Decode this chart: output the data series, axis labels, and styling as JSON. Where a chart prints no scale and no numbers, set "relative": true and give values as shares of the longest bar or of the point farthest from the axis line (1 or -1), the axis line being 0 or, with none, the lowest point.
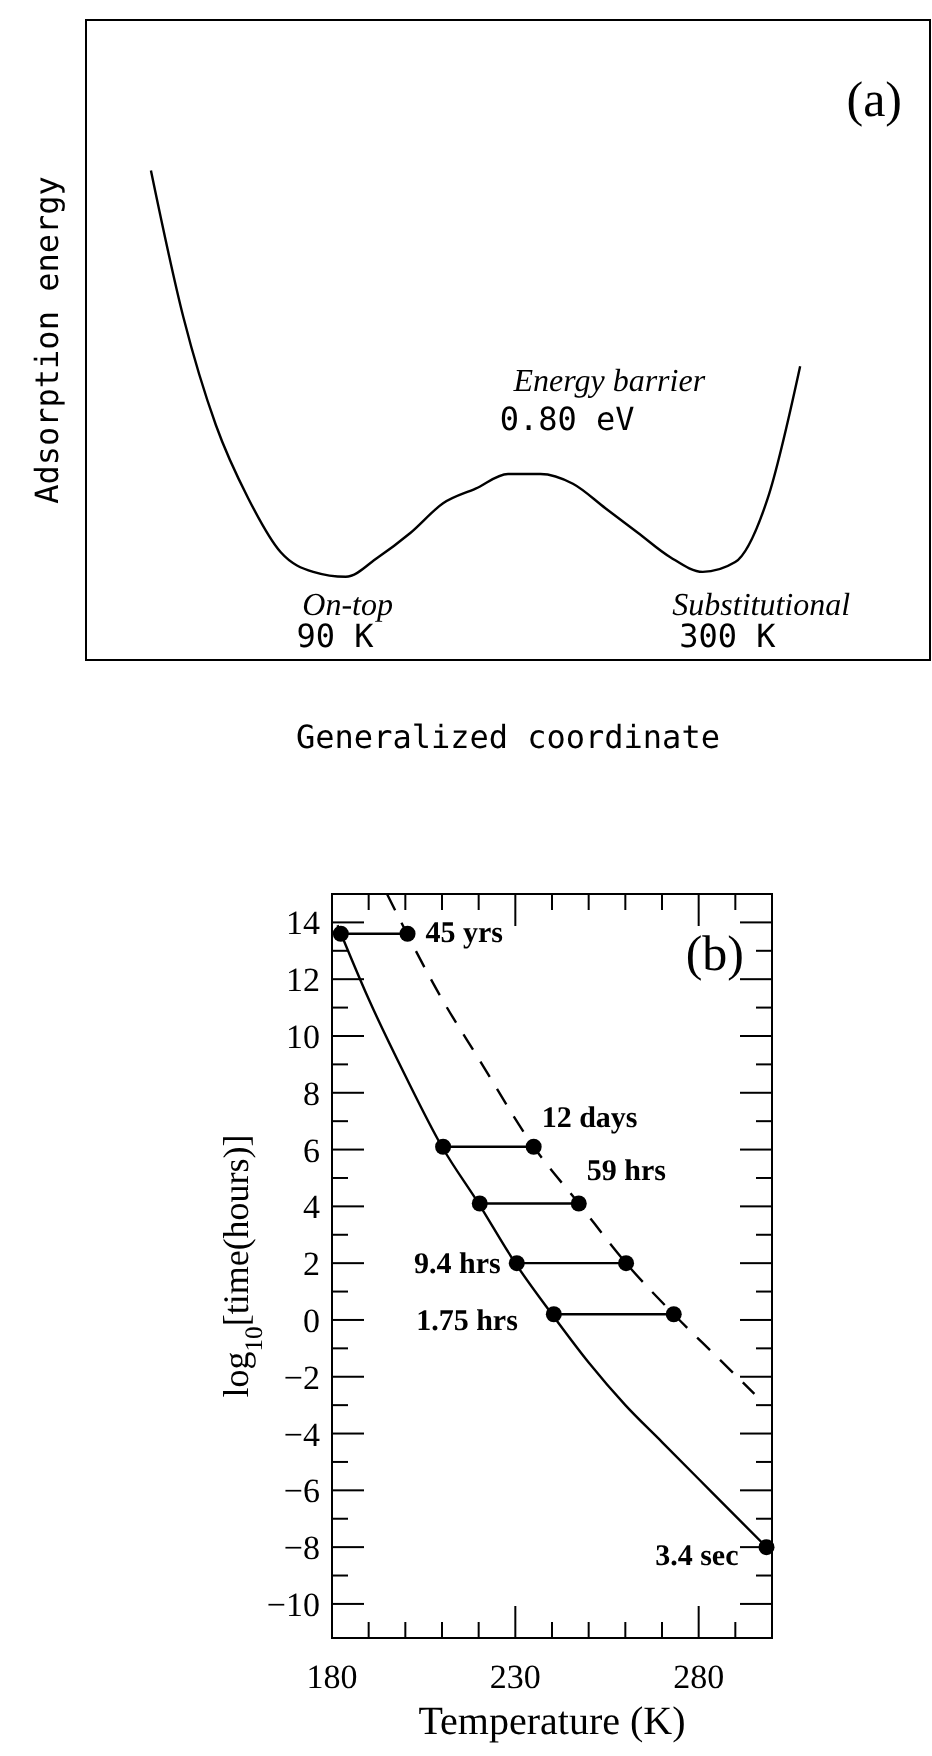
{
  "chart_data": [
    {
      "type": "line",
      "title": "(a)",
      "xlabel": "Generalized coordinate",
      "ylabel": "Adsorption energy",
      "relative": true,
      "categories": [
        null,
        null,
        null,
        null,
        null,
        null,
        null,
        null,
        null,
        null,
        null,
        null,
        null,
        null,
        null,
        null,
        null,
        null,
        null,
        null,
        null,
        null,
        null,
        null,
        null,
        null,
        null
      ],
      "values": [
        null,
        null,
        1,
        0.7,
        0.48,
        0.33,
        0.22,
        0.18,
        0.17,
        0.21,
        0.26,
        0.32,
        0.35,
        0.38,
        0.38,
        0.36,
        0.31,
        0.26,
        0.21,
        0.18,
        0.2,
        0.33,
        0.6,
        null,
        null,
        null,
        null
      ],
      "color": "#000000",
      "annotations": [
        "Energy barrier",
        "0.80 eV",
        "On-top",
        "90 K",
        "Substitutional",
        "300 K"
      ]
    },
    {
      "type": "line",
      "title": "(b)",
      "xlabel": "Temperature (K)",
      "ylabel": "log$_{10}$[time(hours)]",
      "xlim": [
        180,
        300
      ],
      "ylim": [
        -11.2,
        15
      ],
      "xticks": [
        180,
        {
          "value": 190,
          "label": null
        },
        {
          "value": 200,
          "label": null
        },
        {
          "value": 210,
          "label": null
        },
        {
          "value": 220,
          "label": null
        },
        230,
        {
          "value": 240,
          "label": null
        },
        {
          "value": 250,
          "label": null
        },
        {
          "value": 260,
          "label": null
        },
        {
          "value": 270,
          "label": null
        },
        280,
        {
          "value": 290,
          "label": null
        },
        {
          "value": 300,
          "label": null
        }
      ],
      "yticks": [
        -10,
        {
          "value": -9,
          "label": null
        },
        -8,
        {
          "value": -7,
          "label": null
        },
        -6,
        {
          "value": -5,
          "label": null
        },
        -4,
        {
          "value": -3,
          "label": null
        },
        -2,
        {
          "value": -1,
          "label": null
        },
        0,
        {
          "value": 1,
          "label": null
        },
        2,
        {
          "value": 3,
          "label": null
        },
        4,
        {
          "value": 5,
          "label": null
        },
        6,
        {
          "value": 7,
          "label": null
        },
        8,
        {
          "value": 9,
          "label": null
        },
        10,
        {
          "value": 11,
          "label": null
        },
        12,
        {
          "value": 13,
          "label": null
        },
        14
      ],
      "series": [
        {
          "color": "#000000",
          "line_style": "solid",
          "x": [
            181.5,
            190,
            200,
            210,
            220,
            230,
            240,
            250,
            260,
            270,
            280,
            290,
            298.5
          ],
          "values": [
            13.9,
            11.3,
            8.6,
            6.1,
            4.1,
            2.0,
            0.2,
            -1.5,
            -3.0,
            -4.3,
            -5.6,
            -6.9,
            -8.0
          ]
        },
        {
          "color": "#000000",
          "line_style": "dashed",
          "x": [
            195,
            210,
            220,
            235,
            247.3,
            260.2,
            273.2,
            285,
            295.2
          ],
          "values": [
            15,
            11.3,
            9.2,
            6.1,
            4.1,
            2.0,
            0.2,
            -1.3,
            -2.6
          ]
        },
        {
          "color": "#000000",
          "marker": "circle",
          "x": [
            182.4,
            200.6
          ],
          "values": [
            13.6,
            13.6
          ]
        },
        {
          "color": "#000000",
          "marker": "circle",
          "x": [
            210.3,
            235
          ],
          "values": [
            6.1,
            6.1
          ]
        },
        {
          "color": "#000000",
          "marker": "circle",
          "x": [
            220.3,
            247.3
          ],
          "values": [
            4.1,
            4.1
          ]
        },
        {
          "color": "#000000",
          "marker": "circle",
          "x": [
            230.4,
            260.2
          ],
          "values": [
            2.0,
            2.0
          ]
        },
        {
          "color": "#000000",
          "marker": "circle",
          "x": [
            240.5,
            273.2
          ],
          "values": [
            0.2,
            0.2
          ]
        },
        {
          "color": "#000000",
          "marker": "circle",
          "x": [
            298.5
          ],
          "values": [
            -8.0
          ]
        }
      ],
      "annotations": [
        {
          "text": "45 yrs",
          "x": 200.6,
          "y": 13.6
        },
        {
          "text": "12 days",
          "x": 235,
          "y": 6.1
        },
        {
          "text": "59 hrs",
          "x": 247.3,
          "y": 4.1
        },
        {
          "text": "9.4 hrs",
          "x": 230.4,
          "y": 2.0
        },
        {
          "text": "1.75 hrs",
          "x": 240.5,
          "y": 0.2
        },
        {
          "text": "3.4 sec",
          "x": 298.5,
          "y": -8.0
        }
      ]
    }
  ]
}
